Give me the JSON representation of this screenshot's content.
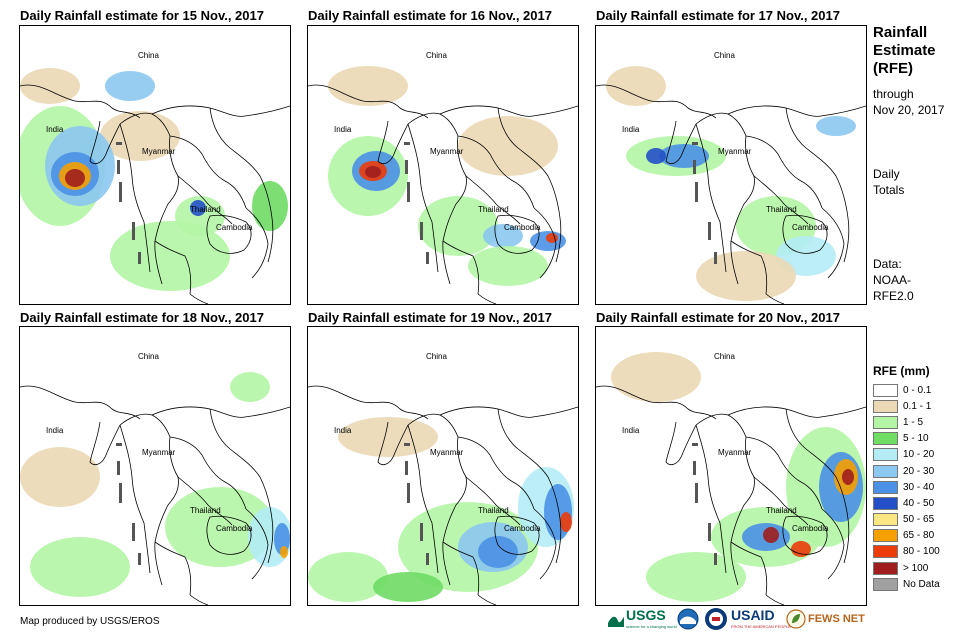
{
  "panels": [
    {
      "title": "Daily Rainfall estimate for 15 Nov., 2017"
    },
    {
      "title": "Daily Rainfall estimate for 16 Nov., 2017"
    },
    {
      "title": "Daily Rainfall estimate for 17 Nov., 2017"
    },
    {
      "title": "Daily Rainfall estimate for 18 Nov., 2017"
    },
    {
      "title": "Daily Rainfall estimate for 19 Nov., 2017"
    },
    {
      "title": "Daily Rainfall estimate for 20 Nov., 2017"
    }
  ],
  "map_labels": {
    "china": "China",
    "india": "India",
    "myanmar": "Myanmar",
    "thailand": "Thailand",
    "cambodia": "Cambodia"
  },
  "sidebar": {
    "title_line1": "Rainfall",
    "title_line2": "Estimate",
    "title_line3": "(RFE)",
    "through_line1": "through",
    "through_line2": "Nov 20, 2017",
    "daily_line1": "Daily",
    "daily_line2": "Totals",
    "data_line1": "Data:",
    "data_line2": "NOAA-",
    "data_line3": "RFE2.0"
  },
  "legend": {
    "title": "RFE (mm)",
    "items": [
      {
        "label": "0 - 0.1",
        "color": "#ffffff"
      },
      {
        "label": "0.1 - 1",
        "color": "#ebd8b4"
      },
      {
        "label": "1 - 5",
        "color": "#b4f5a5"
      },
      {
        "label": "5 - 10",
        "color": "#6fdc64"
      },
      {
        "label": "10 - 20",
        "color": "#b4ecf5"
      },
      {
        "label": "20 - 30",
        "color": "#8cc8f0"
      },
      {
        "label": "30 - 40",
        "color": "#4b91e6"
      },
      {
        "label": "40 - 50",
        "color": "#2350c8"
      },
      {
        "label": "50 - 65",
        "color": "#fae682"
      },
      {
        "label": "65 - 80",
        "color": "#f5a000"
      },
      {
        "label": "80 - 100",
        "color": "#eb3c0a"
      },
      {
        "label": "> 100",
        "color": "#a01e1e"
      },
      {
        "label": "No Data",
        "color": "#a0a0a0"
      }
    ]
  },
  "footer": {
    "credit": "Map produced by USGS/EROS",
    "usgs": "USGS",
    "usgs_tagline": "science for a changing world",
    "usaid": "USAID",
    "usaid_tagline": "FROM THE AMERICAN PEOPLE",
    "fewsnet": "FEWS NET"
  },
  "rain_colors": {
    "c1": "#ebd8b4",
    "c2": "#b4f5a5",
    "c3": "#6fdc64",
    "c4": "#b4ecf5",
    "c5": "#8cc8f0",
    "c6": "#4b91e6",
    "c7": "#2350c8",
    "c8": "#fae682",
    "c9": "#f5a000",
    "c10": "#eb3c0a",
    "c11": "#a01e1e"
  }
}
